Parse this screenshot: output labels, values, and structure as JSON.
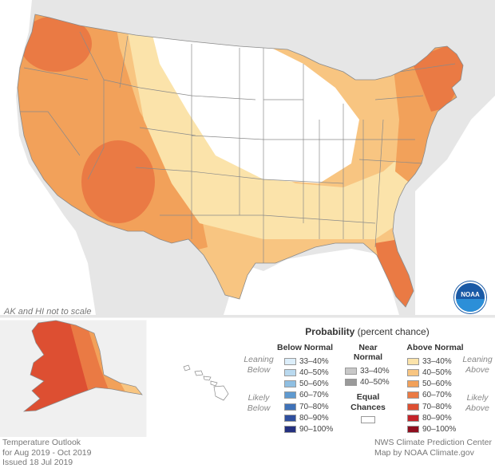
{
  "map_title": "Temperature Outlook",
  "period": "for Aug 2019 - Oct 2019",
  "issued": "Issued 18 Jul 2019",
  "credit_line1": "NWS Climate Prediction Center",
  "credit_line2": "Map by NOAA Climate.gov",
  "scale_note": "AK and HI not to scale",
  "legend": {
    "title_bold": "Probability",
    "title_rest": " (percent chance)",
    "below_header": "Below Normal",
    "near_header_1": "Near",
    "near_header_2": "Normal",
    "above_header": "Above Normal",
    "leaning_below_1": "Leaning",
    "leaning_below_2": "Below",
    "likely_below_1": "Likely",
    "likely_below_2": "Below",
    "leaning_above_1": "Leaning",
    "leaning_above_2": "Above",
    "likely_above_1": "Likely",
    "likely_above_2": "Above",
    "equal_1": "Equal",
    "equal_2": "Chances",
    "below": [
      {
        "label": "33–40%",
        "color": "#dceefa"
      },
      {
        "label": "40–50%",
        "color": "#b9d9ef"
      },
      {
        "label": "50–60%",
        "color": "#8fbfe2"
      },
      {
        "label": "60–70%",
        "color": "#5f9ad0"
      },
      {
        "label": "70–80%",
        "color": "#3f72b8"
      },
      {
        "label": "80–90%",
        "color": "#2f4f9e"
      },
      {
        "label": "90–100%",
        "color": "#24307f"
      }
    ],
    "near": [
      {
        "label": "33–40%",
        "color": "#c8c8c8"
      },
      {
        "label": "40–50%",
        "color": "#9a9a9a"
      }
    ],
    "above": [
      {
        "label": "33–40%",
        "color": "#fbe3aa"
      },
      {
        "label": "40–50%",
        "color": "#f8c581"
      },
      {
        "label": "50–60%",
        "color": "#f2a15a"
      },
      {
        "label": "60–70%",
        "color": "#ea7a44"
      },
      {
        "label": "70–80%",
        "color": "#dd4f32"
      },
      {
        "label": "80–90%",
        "color": "#c4242a"
      },
      {
        "label": "90–100%",
        "color": "#8f0f1f"
      }
    ]
  },
  "colors": {
    "background_land": "#e6e6e6",
    "water": "#ffffff",
    "equal_chances": "#ffffff",
    "state_lines": "#8a8a8a"
  },
  "logo_text": "NOAA"
}
